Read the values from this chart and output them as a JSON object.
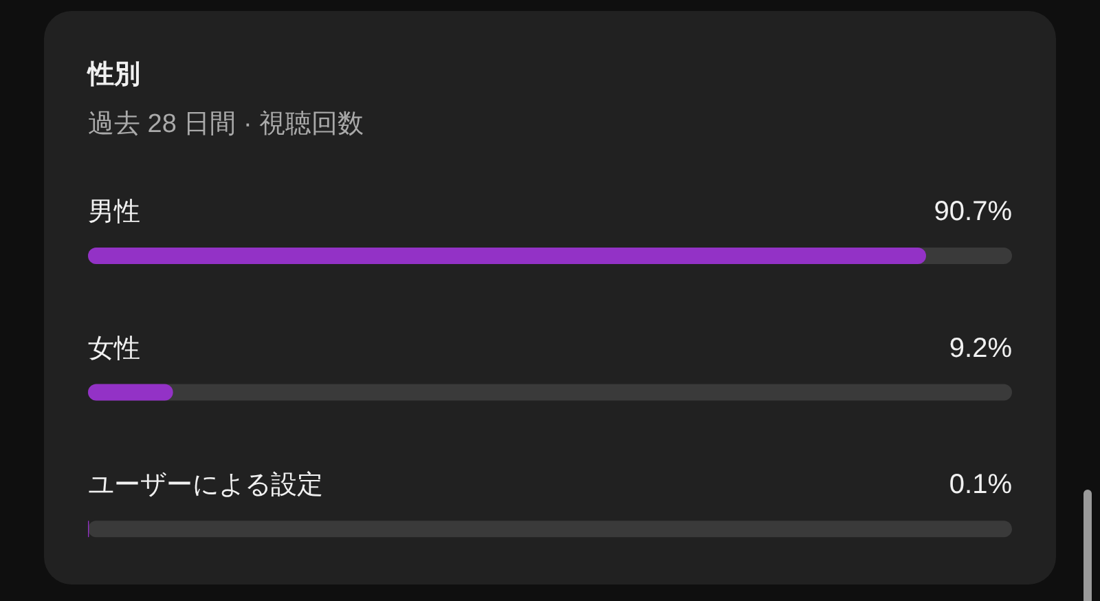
{
  "chart_data": {
    "type": "bar",
    "orientation": "horizontal",
    "title": "性別",
    "subtitle": "過去 28 日間 · 視聴回数",
    "categories": [
      "男性",
      "女性",
      "ユーザーによる設定"
    ],
    "values": [
      90.7,
      9.2,
      0.1
    ],
    "value_labels": [
      "90.7%",
      "9.2%",
      "0.1%"
    ],
    "color": "#9332c6",
    "xlim": [
      0,
      100
    ]
  }
}
